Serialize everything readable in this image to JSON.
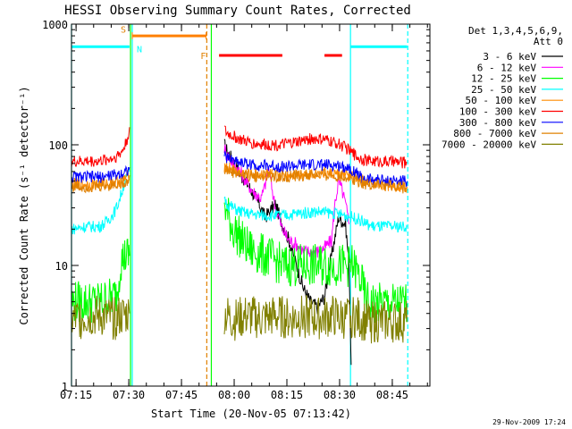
{
  "chart_data": {
    "type": "line",
    "title": "HESSI Observing Summary Count Rates, Corrected",
    "xlabel": "Start Time (20-Nov-05 07:13:42)",
    "ylabel": "Corrected Count Rate (s⁻¹ detector⁻¹)",
    "y_scale": "log",
    "ylim": [
      1,
      1000
    ],
    "x_unit": "minutes after 07:13:42",
    "xlim": [
      0,
      102
    ],
    "x_ticks": [
      {
        "label": "07:15",
        "x": 1.3
      },
      {
        "label": "07:30",
        "x": 16.3
      },
      {
        "label": "07:45",
        "x": 31.3
      },
      {
        "label": "08:00",
        "x": 46.3
      },
      {
        "label": "08:15",
        "x": 61.3
      },
      {
        "label": "08:30",
        "x": 76.3
      },
      {
        "label": "08:45",
        "x": 91.3
      }
    ],
    "y_ticks": [
      {
        "label": "1",
        "value": 1
      },
      {
        "label": "10",
        "value": 10
      },
      {
        "label": "100",
        "value": 100
      },
      {
        "label": "1000",
        "value": 1000
      }
    ],
    "legend": {
      "placement": "right",
      "header": [
        "Det 1,3,4,5,6,9,",
        "Att 0"
      ]
    },
    "series": [
      {
        "name": "3 - 6 keV",
        "color": "#000000",
        "x": [
          43.5,
          44,
          45,
          46,
          47,
          48,
          50,
          52,
          54,
          55,
          56,
          58,
          60,
          62,
          64,
          66,
          68,
          70,
          72,
          74,
          76,
          78,
          79,
          79.6
        ],
        "y": [
          100,
          92,
          82,
          74,
          65,
          57,
          48,
          38,
          30,
          25,
          27,
          32,
          22,
          16,
          10,
          6.5,
          5,
          4.5,
          5.5,
          12,
          25,
          22,
          10,
          1.5
        ]
      },
      {
        "name": "6 - 12 keV",
        "color": "#ff00ff",
        "x": [
          43.5,
          44,
          46,
          48,
          50,
          52,
          54,
          55,
          56,
          57,
          58,
          59,
          60,
          62,
          64,
          66,
          68,
          70,
          72,
          74,
          75,
          76,
          77,
          78,
          79
        ],
        "y": [
          95,
          85,
          70,
          60,
          48,
          40,
          36,
          45,
          65,
          45,
          30,
          25,
          20,
          16,
          15,
          13,
          13,
          13,
          14,
          16,
          33,
          50,
          42,
          32,
          22
        ]
      },
      {
        "name": "12 - 25 keV",
        "color": "#00ff00",
        "x": [
          0,
          4,
          8,
          12,
          13,
          14,
          15.5,
          16.5,
          43.5,
          44,
          46,
          48,
          50,
          52,
          55,
          58,
          60,
          64,
          68,
          72,
          76,
          78,
          80,
          82,
          84,
          86,
          88,
          90,
          92,
          94,
          95.5
        ],
        "y": [
          5,
          5,
          5,
          5.5,
          6,
          11,
          12,
          12,
          33,
          28,
          20,
          17,
          14,
          13,
          12,
          11,
          10,
          10,
          10,
          10,
          10,
          10,
          10,
          8,
          5,
          4.8,
          4.8,
          4.8,
          4.8,
          4.8,
          4.8
        ]
      },
      {
        "name": "25 - 50 keV",
        "color": "#00ffff",
        "x": [
          0,
          4,
          8,
          10,
          12,
          13,
          14,
          15,
          16,
          16.5,
          43.5,
          44,
          46,
          48,
          50,
          55,
          60,
          65,
          70,
          75,
          78,
          80,
          82,
          84,
          86,
          90,
          95.5
        ],
        "y": [
          20,
          21,
          21,
          23,
          27,
          31,
          38,
          48,
          56,
          60,
          38,
          33,
          30,
          28,
          27,
          26,
          26,
          27,
          28,
          27,
          26,
          25,
          24,
          22,
          21,
          21,
          21
        ]
      },
      {
        "name": "50 - 100 keV",
        "color": "#ff8c00",
        "x": [
          0,
          4,
          8,
          12,
          14,
          15,
          16,
          16.5,
          43.5,
          44,
          46,
          48,
          52,
          56,
          60,
          64,
          68,
          72,
          76,
          78,
          80,
          82,
          84,
          88,
          92,
          95.5
        ],
        "y": [
          47,
          47,
          47,
          49,
          50,
          52,
          55,
          56,
          67,
          66,
          62,
          58,
          57,
          57,
          56,
          57,
          58,
          58,
          57,
          56,
          54,
          52,
          48,
          47,
          46,
          45
        ]
      },
      {
        "name": "100 - 300 keV",
        "color": "#ff0000",
        "x": [
          0,
          4,
          8,
          12,
          14,
          15,
          16,
          16.5,
          43.5,
          44,
          46,
          48,
          52,
          56,
          60,
          64,
          68,
          72,
          76,
          78,
          80,
          82,
          84,
          88,
          92,
          95.5
        ],
        "y": [
          72,
          73,
          73,
          78,
          85,
          95,
          115,
          140,
          135,
          125,
          118,
          110,
          102,
          100,
          100,
          105,
          112,
          110,
          102,
          95,
          85,
          78,
          74,
          73,
          72,
          71
        ]
      },
      {
        "name": "300 - 800 keV",
        "color": "#0000ff",
        "x": [
          0,
          4,
          8,
          12,
          14,
          15,
          16,
          16.5,
          43.5,
          44,
          46,
          48,
          52,
          56,
          60,
          64,
          68,
          72,
          76,
          78,
          80,
          82,
          84,
          88,
          92,
          95.5
        ],
        "y": [
          54,
          54,
          54,
          56,
          58,
          60,
          62,
          65,
          80,
          78,
          75,
          72,
          68,
          67,
          66,
          67,
          68,
          68,
          67,
          66,
          62,
          55,
          52,
          51,
          50,
          50
        ]
      },
      {
        "name": "800 - 7000 keV",
        "color": "#e08000",
        "x": [
          0,
          4,
          8,
          12,
          14,
          15,
          16,
          16.5,
          43.5,
          44,
          46,
          48,
          52,
          56,
          60,
          64,
          68,
          72,
          76,
          78,
          80,
          82,
          84,
          88,
          92,
          95.5
        ],
        "y": [
          45,
          45,
          45,
          47,
          48,
          49,
          50,
          52,
          63,
          62,
          59,
          56,
          55,
          55,
          54,
          55,
          56,
          56,
          55,
          54,
          52,
          50,
          47,
          46,
          45,
          44
        ]
      },
      {
        "name": "7000 - 20000 keV",
        "color": "#808000",
        "x": [
          0,
          4,
          8,
          12,
          14,
          16.5,
          43.5,
          46,
          50,
          54,
          58,
          62,
          66,
          70,
          74,
          78,
          80,
          84,
          88,
          92,
          95.5
        ],
        "y": [
          3.5,
          3.8,
          3.8,
          3.6,
          3.8,
          4,
          4,
          3.5,
          3.8,
          3.6,
          3.8,
          3.6,
          3.8,
          3.6,
          3.8,
          3.6,
          3.8,
          3.4,
          3.4,
          3.4,
          3.4
        ]
      }
    ],
    "annotations": [
      {
        "label": "S",
        "x": 16.8,
        "color": "#e08000",
        "style": "dashed"
      },
      {
        "label": "N",
        "x": 17.3,
        "color": "#00ffff",
        "style": "solid"
      },
      {
        "label": "F",
        "x": 38.5,
        "color": "#e08000",
        "style": "dashed"
      }
    ],
    "interval_bars": [
      {
        "name": "orange",
        "color": "#ff8000",
        "level": 800,
        "ranges": [
          [
            17.3,
            38.3
          ]
        ]
      },
      {
        "name": "red",
        "color": "#ff0000",
        "level": 550,
        "ranges": [
          [
            42,
            60
          ],
          [
            72,
            77
          ]
        ]
      },
      {
        "name": "cyan",
        "color": "#00ffff",
        "level": 650,
        "ranges": [
          [
            0,
            16.5
          ],
          [
            79.5,
            95.5
          ]
        ]
      }
    ],
    "vertical_lines": [
      {
        "x": 0,
        "color": "#00ffff",
        "style": "solid"
      },
      {
        "x": 17.3,
        "color": "#00ffff",
        "style": "solid"
      },
      {
        "x": 16.8,
        "color": "#00ff00",
        "style": "solid"
      },
      {
        "x": 38.5,
        "color": "#e08000",
        "style": "dashed"
      },
      {
        "x": 39.8,
        "color": "#00ff00",
        "style": "solid"
      },
      {
        "x": 79.4,
        "color": "#00ffff",
        "style": "solid"
      },
      {
        "x": 95.7,
        "color": "#00ffff",
        "style": "dashed"
      }
    ]
  },
  "footer": {
    "timestamp": "29-Nov-2009 17:24"
  }
}
